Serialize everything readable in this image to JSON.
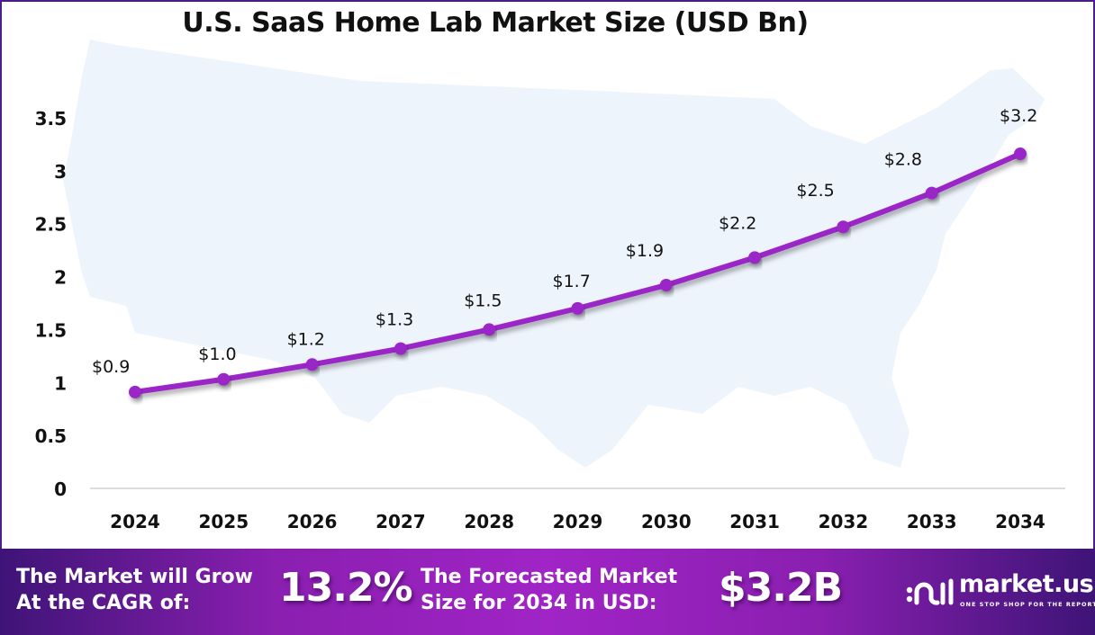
{
  "colors": {
    "line": "#9b27c7",
    "map": "#eef4fc",
    "axis": "#cccccc",
    "footer_start": "#3e1477",
    "footer_mid": "#a024c6",
    "border": "#4a1d8a"
  },
  "chart_data": {
    "type": "line",
    "title": "U.S. SaaS Home Lab Market Size (USD Bn)",
    "xlabel": "",
    "ylabel": "",
    "categories": [
      "2024",
      "2025",
      "2026",
      "2027",
      "2028",
      "2029",
      "2030",
      "2031",
      "2032",
      "2033",
      "2034"
    ],
    "series": [
      {
        "name": "Market Size (USD Bn)",
        "values": [
          0.91,
          1.03,
          1.17,
          1.32,
          1.5,
          1.7,
          1.92,
          2.18,
          2.47,
          2.79,
          3.16
        ],
        "labels": [
          "$0.9",
          "$1.0",
          "$1.2",
          "$1.3",
          "$1.5",
          "$1.7",
          "$1.9",
          "$2.2",
          "$2.5",
          "$2.8",
          "$3.2"
        ]
      }
    ],
    "yticks": [
      "0",
      "0.5",
      "1",
      "1.5",
      "2",
      "2.5",
      "3",
      "3.5"
    ],
    "ytick_values": [
      0,
      0.5,
      1,
      1.5,
      2,
      2.5,
      3,
      3.5
    ],
    "ylim": [
      0,
      3.5
    ],
    "grid": false,
    "legend": "none"
  },
  "footer": {
    "cagr_text_line1": "The Market will Grow",
    "cagr_text_line2": "At the CAGR of:",
    "cagr_value": "13.2%",
    "forecast_text_line1": "The Forecasted Market",
    "forecast_text_line2": "Size for 2034 in USD:",
    "forecast_value": "$3.2B",
    "logo_name": "market.us",
    "logo_tagline": "ONE STOP SHOP FOR THE REPORTS"
  }
}
